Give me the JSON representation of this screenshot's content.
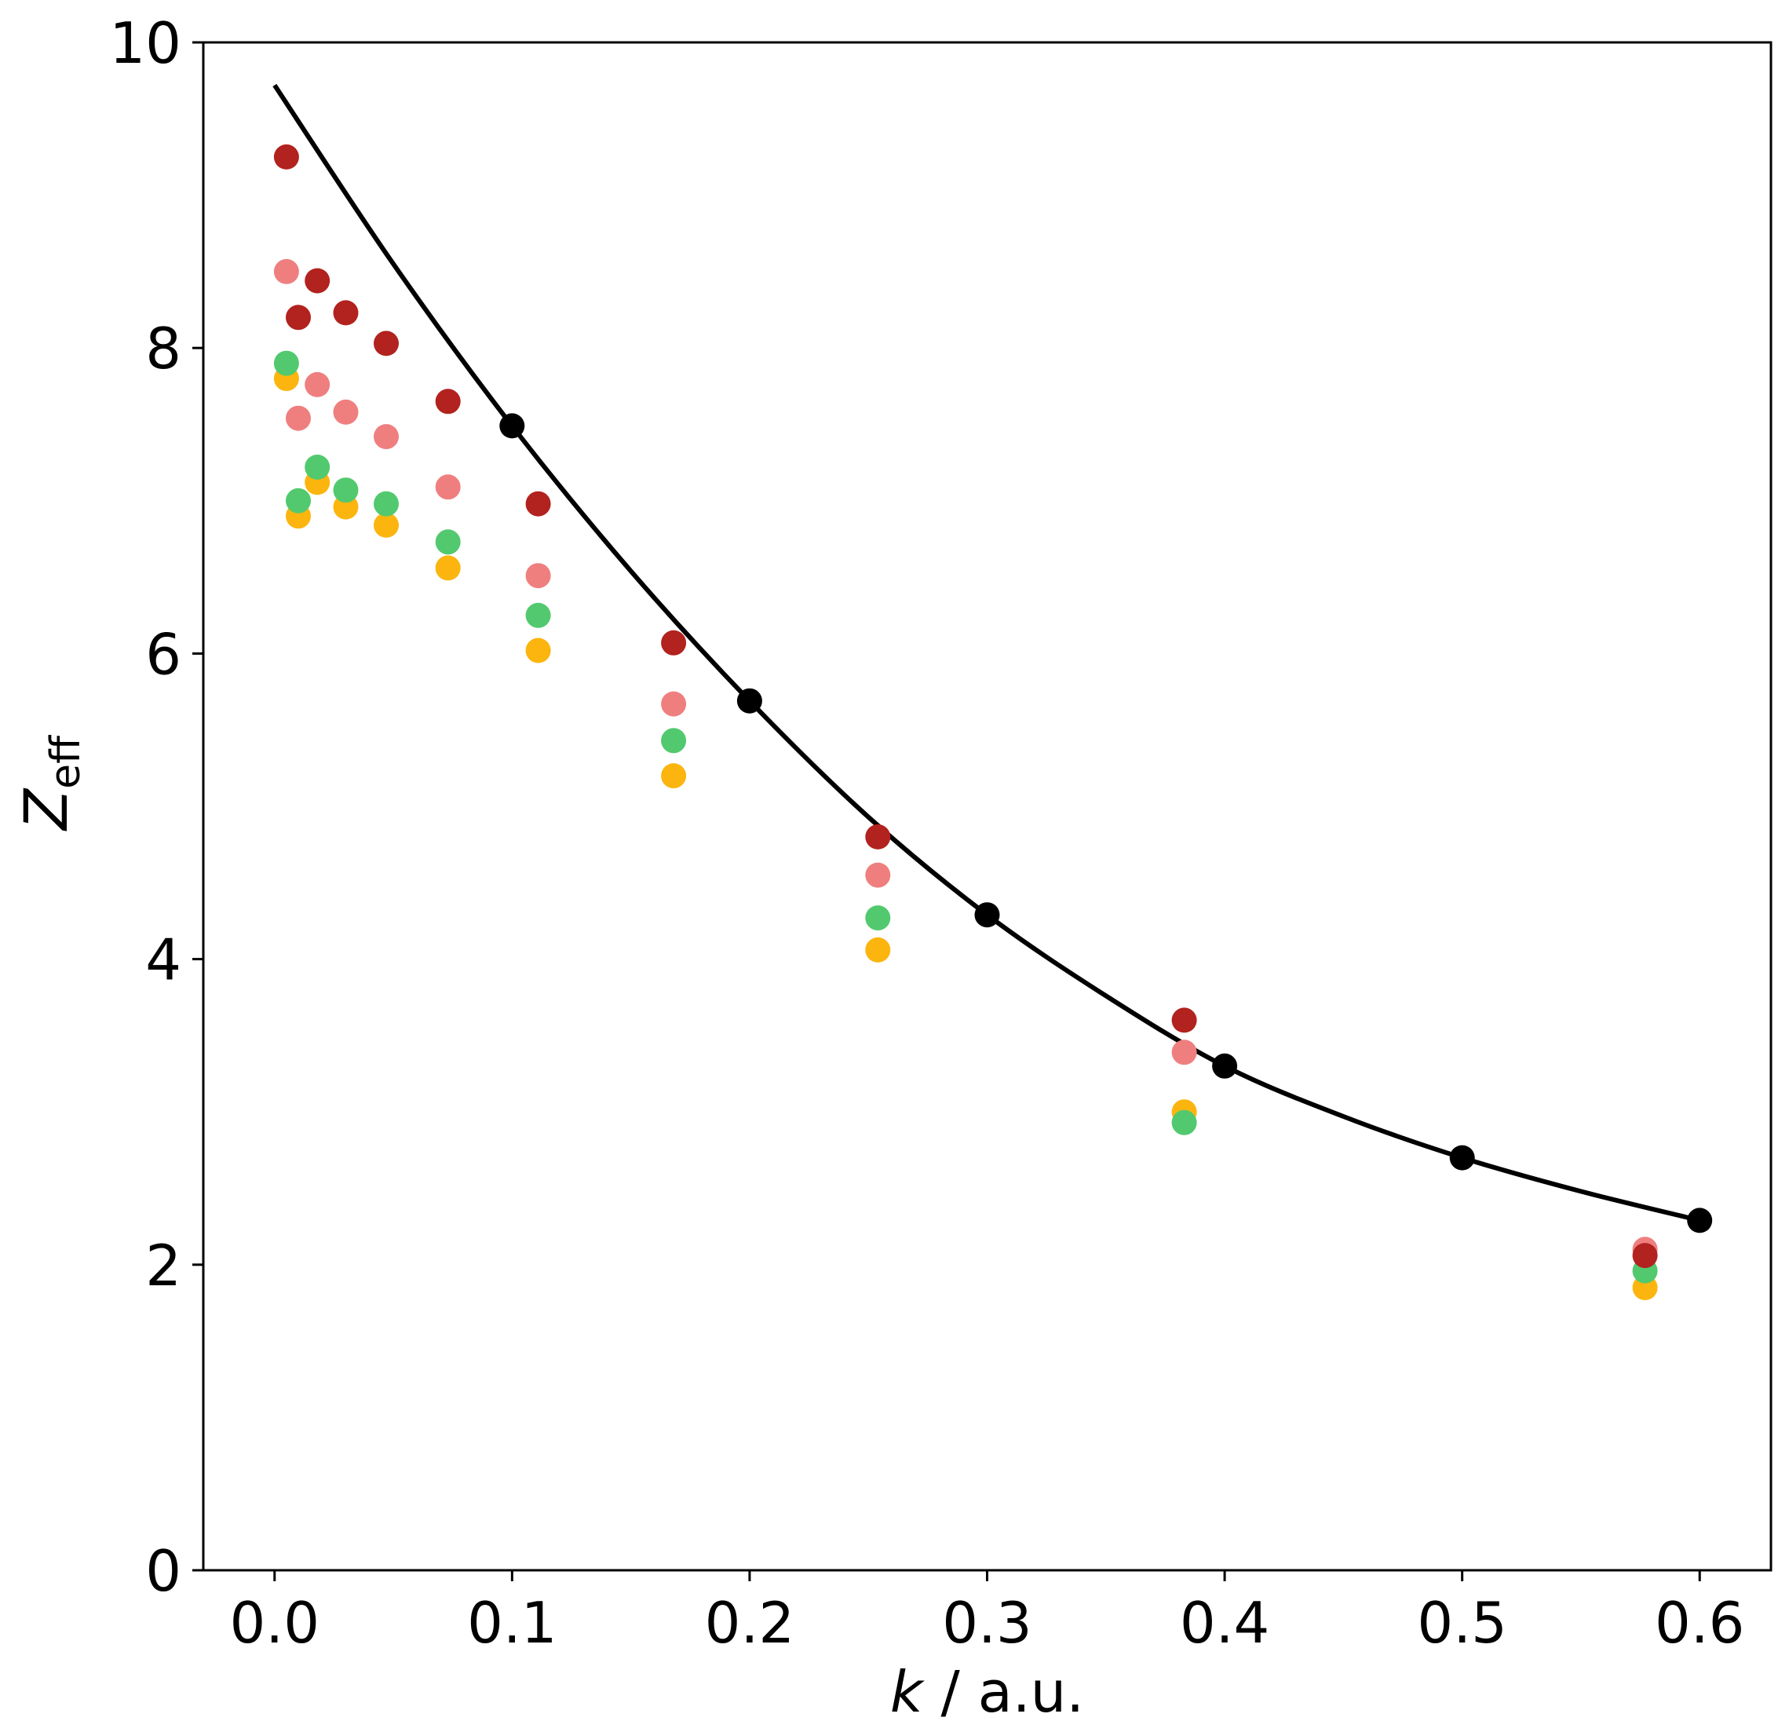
{
  "chart_data": {
    "type": "scatter",
    "title": "",
    "xlabel_var": "k",
    "xlabel_unit": " / a.u.",
    "ylabel_main": "Z",
    "ylabel_sub": "eff",
    "xlim": [
      -0.03,
      0.63
    ],
    "ylim": [
      0,
      10
    ],
    "x_ticks": [
      0.0,
      0.1,
      0.2,
      0.3,
      0.4,
      0.5,
      0.6
    ],
    "x_tick_labels": [
      "0.0",
      "0.1",
      "0.2",
      "0.3",
      "0.4",
      "0.5",
      "0.6"
    ],
    "y_ticks": [
      0,
      2,
      4,
      6,
      8,
      10
    ],
    "y_tick_labels": [
      "0",
      "2",
      "4",
      "6",
      "8",
      "10"
    ],
    "grid": false,
    "curve": {
      "name": "fit",
      "color": "#000000",
      "x": [
        0.0,
        0.05,
        0.1,
        0.15,
        0.2,
        0.25,
        0.3,
        0.35,
        0.4,
        0.45,
        0.5,
        0.55,
        0.6
      ],
      "y": [
        9.72,
        8.55,
        7.49,
        6.54,
        5.69,
        4.93,
        4.29,
        3.76,
        3.3,
        2.97,
        2.7,
        2.48,
        2.29
      ]
    },
    "series": [
      {
        "name": "black",
        "color": "#000000",
        "x": [
          0.1,
          0.2,
          0.3,
          0.4,
          0.5,
          0.6
        ],
        "y": [
          7.49,
          5.69,
          4.29,
          3.3,
          2.7,
          2.29
        ]
      },
      {
        "name": "dark-red",
        "color": "#b2221e",
        "x": [
          0.005,
          0.01,
          0.018,
          0.03,
          0.047,
          0.073,
          0.111,
          0.168,
          0.254,
          0.383,
          0.577
        ],
        "y": [
          9.25,
          8.2,
          8.44,
          8.23,
          8.03,
          7.65,
          6.98,
          6.07,
          4.8,
          3.6,
          2.06
        ]
      },
      {
        "name": "light-red",
        "color": "#ef7f7f",
        "x": [
          0.005,
          0.01,
          0.018,
          0.03,
          0.047,
          0.073,
          0.111,
          0.168,
          0.254,
          0.383,
          0.577
        ],
        "y": [
          8.5,
          7.54,
          7.76,
          7.58,
          7.42,
          7.09,
          6.51,
          5.67,
          4.55,
          3.39,
          2.1
        ]
      },
      {
        "name": "green",
        "color": "#52c96e",
        "x": [
          0.005,
          0.01,
          0.018,
          0.03,
          0.047,
          0.073,
          0.111,
          0.168,
          0.254,
          0.383,
          0.577
        ],
        "y": [
          7.9,
          7.0,
          7.22,
          7.07,
          6.98,
          6.73,
          6.25,
          5.43,
          4.27,
          2.93,
          1.96
        ]
      },
      {
        "name": "yellow",
        "color": "#fbb50e",
        "x": [
          0.005,
          0.01,
          0.018,
          0.03,
          0.047,
          0.073,
          0.111,
          0.168,
          0.254,
          0.383,
          0.577
        ],
        "y": [
          7.8,
          6.9,
          7.12,
          6.96,
          6.84,
          6.56,
          6.02,
          5.2,
          4.06,
          3.0,
          1.85
        ]
      }
    ]
  }
}
